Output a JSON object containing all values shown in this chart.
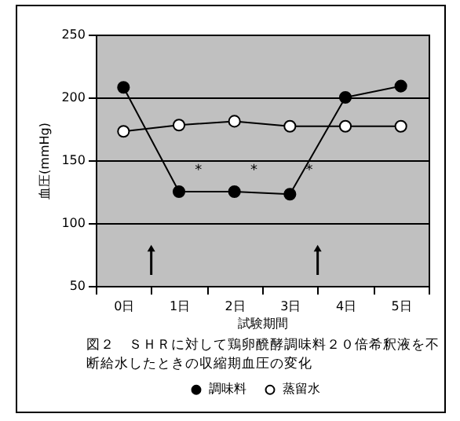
{
  "chart_data": {
    "type": "line",
    "title": "図２　ＳＨＲに対して鶏卵醗酵調味料２０倍希釈液を不断給水したときの収縮期血圧の変化",
    "xlabel": "試験期間",
    "ylabel": "血圧(mmHg)",
    "categories": [
      "0日",
      "1日",
      "2日",
      "3日",
      "4日",
      "5日"
    ],
    "series": [
      {
        "name": "調味料",
        "color": "#000000",
        "values": [
          208,
          125,
          125,
          123,
          200,
          209
        ]
      },
      {
        "name": "蒸留水",
        "color": "#ffffff",
        "values": [
          173,
          178,
          181,
          177,
          177,
          177
        ]
      }
    ],
    "ylim": [
      50,
      250
    ],
    "yticks": [
      50,
      100,
      150,
      200,
      250
    ],
    "grid": "y",
    "legend": "bottom",
    "marker": "circle",
    "line_style": "solid",
    "annotations": [
      "*",
      "*",
      "*"
    ]
  }
}
